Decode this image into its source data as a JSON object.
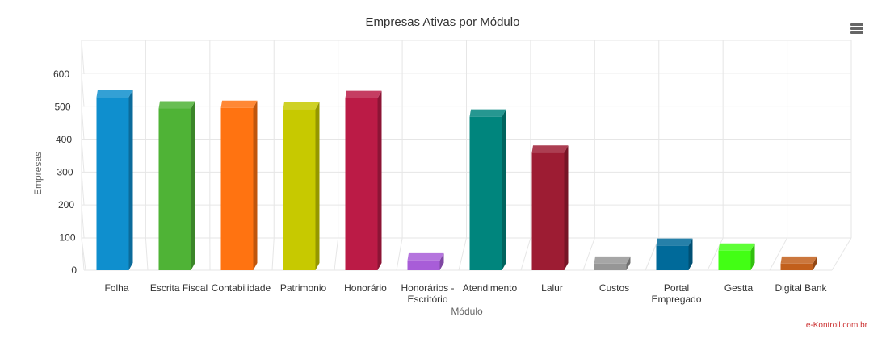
{
  "chart_data": {
    "type": "bar",
    "title": "Empresas Ativas por Módulo",
    "xlabel": "Módulo",
    "ylabel": "Empresas",
    "ylim": [
      0,
      600
    ],
    "yticks": [
      "0",
      "100",
      "200",
      "300",
      "400",
      "500",
      "600"
    ],
    "categories": [
      [
        "Folha"
      ],
      [
        "Escrita Fiscal"
      ],
      [
        "Contabilidade"
      ],
      [
        "Patrimonio"
      ],
      [
        "Honorário"
      ],
      [
        "Honorários -",
        "Escritório"
      ],
      [
        "Atendimento"
      ],
      [
        "Lalur"
      ],
      [
        "Custos"
      ],
      [
        "Portal",
        "Empregado"
      ],
      [
        "Gestta"
      ],
      [
        "Digital Bank"
      ]
    ],
    "values": [
      530,
      495,
      497,
      493,
      527,
      30,
      470,
      360,
      20,
      75,
      60,
      20
    ],
    "colors": [
      "#0f8fce",
      "#4fb336",
      "#ff7311",
      "#c7c900",
      "#bb1b46",
      "#a85dd8",
      "#00857d",
      "#9d1c33",
      "#969696",
      "#006a9a",
      "#42ff14",
      "#c25f1b"
    ],
    "grid": true,
    "legend": "none"
  },
  "menu": {
    "icon": "hamburger-menu-icon"
  },
  "credit": "e-Kontroll.com.br"
}
